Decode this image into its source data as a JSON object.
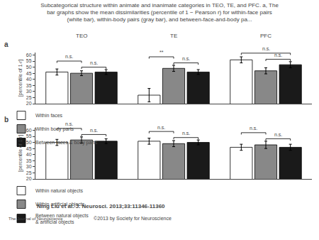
{
  "chart_data": [
    {
      "type": "bar",
      "title": "Subcategorical structure within animate and inanimate categories in TEO, TE, and PFC. a, The\nbar graphs show the mean dissimilarities (percentile of 1 − Pearson r) for within-face pairs\n(white bar), within-body pairs (gray bar), and between-face-and-body pa...",
      "categories": [
        "TEO",
        "TE",
        "PFC"
      ],
      "series": [
        {
          "name": "Within faces",
          "color": "white",
          "values": [
            46,
            27,
            56
          ],
          "errors": [
            2.5,
            5.5,
            2.5
          ]
        },
        {
          "name": "Within body parts",
          "color": "#888888",
          "values": [
            45,
            49,
            47
          ],
          "errors": [
            2.0,
            2.5,
            2.5
          ]
        },
        {
          "name": "Between faces & body parts",
          "color": "#1a1a1a",
          "values": [
            46,
            46,
            52
          ],
          "errors": [
            2.0,
            2.0,
            2.5
          ]
        }
      ],
      "y_label": "[percentile of 1-r]",
      "ylim": [
        20,
        62
      ],
      "yticks": [
        20,
        25,
        30,
        35,
        40,
        45,
        50,
        55,
        60
      ],
      "grid": false,
      "legend": "below",
      "tick_labels": "y",
      "annotations": [
        {
          "text": "a"
        },
        {
          "text": "n.s.",
          "category": "TEO",
          "from": "Within faces",
          "to": "Within body parts"
        },
        {
          "text": "n.s.",
          "category": "TEO",
          "from": "Within body parts",
          "to": "Between faces & body parts"
        },
        {
          "text": "**",
          "category": "TE",
          "from": "Within faces",
          "to": "Within body parts"
        },
        {
          "text": "n.s.",
          "category": "TE",
          "from": "Within body parts",
          "to": "Between faces & body parts"
        },
        {
          "text": "n.s.",
          "category": "PFC",
          "from": "Within faces",
          "to": "Between faces & body parts"
        },
        {
          "text": "n.s.",
          "category": "PFC",
          "from": "Within body parts",
          "to": "Between faces & body parts"
        }
      ]
    },
    {
      "type": "bar",
      "categories": [
        "TEO",
        "TE",
        "PFC"
      ],
      "series": [
        {
          "name": "Within natural objects",
          "color": "white",
          "values": [
            50,
            51,
            46
          ],
          "errors": [
            2.5,
            2.5,
            2.5
          ]
        },
        {
          "name": "Within artificial objects",
          "color": "#888888",
          "values": [
            52,
            49,
            48
          ],
          "errors": [
            2.5,
            2.5,
            3.0
          ]
        },
        {
          "name": "Between natural objects\n& artificial objects",
          "color": "#1a1a1a",
          "values": [
            51,
            50,
            46
          ],
          "errors": [
            2.0,
            2.0,
            2.5
          ]
        }
      ],
      "y_label": "[percentile of 1-r]",
      "ylim": [
        20,
        62
      ],
      "yticks": [
        20,
        25,
        30,
        35,
        40,
        45,
        50,
        55,
        60
      ],
      "grid": false,
      "legend": "below",
      "tick_labels": "y",
      "annotations": [
        {
          "text": "b"
        },
        {
          "text": "n.s.",
          "category": "TEO",
          "from": "Within natural objects",
          "to": "Within artificial objects"
        },
        {
          "text": "n.s.",
          "category": "TEO",
          "from": "Within artificial objects",
          "to": "Between natural objects\n& artificial objects"
        },
        {
          "text": "n.s.",
          "category": "TE",
          "from": "Within natural objects",
          "to": "Within artificial objects"
        },
        {
          "text": "n.s.",
          "category": "TE",
          "from": "Within artificial objects",
          "to": "Between natural objects\n& artificial objects"
        },
        {
          "text": "n.s.",
          "category": "PFC",
          "from": "Within natural objects",
          "to": "Within artificial objects"
        },
        {
          "text": "n.s.",
          "category": "PFC",
          "from": "Within artificial objects",
          "to": "Between natural objects\n& artificial objects"
        },
        {
          "text": "Ning Liu et al. J. Neurosci. 2013;33:11346-11360"
        },
        {
          "text": "The Journal of Neuroscience"
        },
        {
          "text": "©2013 by Society for Neuroscience"
        }
      ]
    }
  ]
}
